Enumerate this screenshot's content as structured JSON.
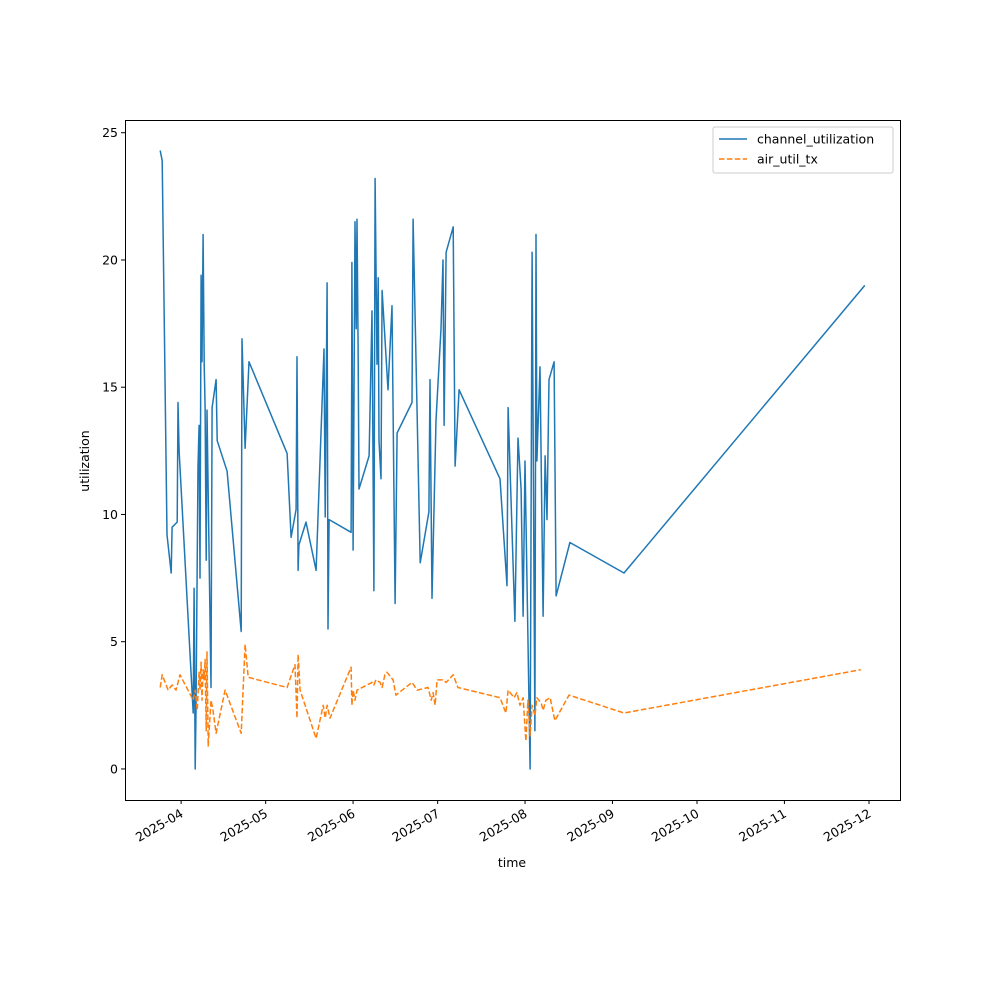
{
  "chart_data": {
    "type": "line",
    "title": "",
    "xlabel": "time",
    "ylabel": "utilization",
    "x_unit": "days since 2025-04-01",
    "xlim": [
      -19.9,
      255
    ],
    "ylim": [
      -1.22,
      25.5
    ],
    "grid": false,
    "legend_position": "top-right",
    "x_ticks": [
      {
        "label": "2025-04",
        "day": 0
      },
      {
        "label": "2025-05",
        "day": 30
      },
      {
        "label": "2025-06",
        "day": 61
      },
      {
        "label": "2025-07",
        "day": 91
      },
      {
        "label": "2025-08",
        "day": 122
      },
      {
        "label": "2025-09",
        "day": 153
      },
      {
        "label": "2025-10",
        "day": 183
      },
      {
        "label": "2025-11",
        "day": 214
      },
      {
        "label": "2025-12",
        "day": 244
      }
    ],
    "y_ticks": [
      0,
      5,
      10,
      15,
      20,
      25
    ],
    "series": [
      {
        "name": "channel_utilization",
        "color": "#1f77b4",
        "style": "solid",
        "points": [
          [
            -7.4,
            24.3
          ],
          [
            -6.7,
            23.9
          ],
          [
            -5.0,
            9.2
          ],
          [
            -3.5,
            7.7
          ],
          [
            -3.2,
            9.5
          ],
          [
            -1.4,
            9.7
          ],
          [
            -1.1,
            14.4
          ],
          [
            -0.7,
            12.5
          ],
          [
            4.3,
            2.2
          ],
          [
            4.6,
            7.1
          ],
          [
            5.0,
            0
          ],
          [
            5.3,
            2.3
          ],
          [
            6.0,
            11.9
          ],
          [
            6.4,
            13.5
          ],
          [
            6.7,
            7.5
          ],
          [
            7.1,
            19.4
          ],
          [
            7.4,
            16.0
          ],
          [
            7.8,
            21.0
          ],
          [
            8.2,
            15.9
          ],
          [
            8.5,
            14.2
          ],
          [
            8.9,
            8.2
          ],
          [
            9.2,
            14.1
          ],
          [
            10.6,
            3.2
          ],
          [
            11.0,
            14.2
          ],
          [
            12.4,
            15.3
          ],
          [
            12.8,
            12.9
          ],
          [
            16.3,
            11.7
          ],
          [
            21.3,
            5.4
          ],
          [
            21.6,
            16.9
          ],
          [
            22.7,
            12.6
          ],
          [
            24.1,
            16.0
          ],
          [
            37.6,
            12.4
          ],
          [
            39.0,
            9.1
          ],
          [
            40.8,
            10.2
          ],
          [
            41.1,
            16.2
          ],
          [
            41.5,
            7.8
          ],
          [
            41.8,
            8.8
          ],
          [
            44.3,
            9.7
          ],
          [
            47.9,
            7.8
          ],
          [
            50.7,
            16.5
          ],
          [
            51.1,
            9.9
          ],
          [
            51.8,
            19.1
          ],
          [
            52.1,
            5.5
          ],
          [
            52.5,
            9.8
          ],
          [
            60.3,
            9.3
          ],
          [
            60.5,
            15.3
          ],
          [
            60.6,
            19.9
          ],
          [
            61.0,
            8.6
          ],
          [
            61.7,
            21.5
          ],
          [
            62.1,
            17.3
          ],
          [
            62.4,
            21.6
          ],
          [
            62.8,
            16.6
          ],
          [
            63.1,
            11.0
          ],
          [
            66.7,
            12.3
          ],
          [
            67.7,
            18.0
          ],
          [
            68.4,
            7.0
          ],
          [
            68.8,
            23.2
          ],
          [
            69.5,
            15.9
          ],
          [
            69.9,
            19.3
          ],
          [
            70.2,
            12.9
          ],
          [
            70.9,
            11.4
          ],
          [
            71.3,
            18.8
          ],
          [
            73.4,
            14.9
          ],
          [
            74.8,
            18.2
          ],
          [
            75.9,
            6.5
          ],
          [
            76.6,
            13.2
          ],
          [
            81.9,
            14.4
          ],
          [
            82.3,
            21.6
          ],
          [
            84.8,
            8.1
          ],
          [
            87.9,
            10.1
          ],
          [
            88.3,
            15.3
          ],
          [
            89.0,
            6.7
          ],
          [
            90.4,
            13.7
          ],
          [
            92.2,
            17.3
          ],
          [
            92.9,
            20.0
          ],
          [
            93.3,
            13.5
          ],
          [
            94.0,
            20.3
          ],
          [
            96.5,
            21.3
          ],
          [
            97.2,
            11.9
          ],
          [
            98.6,
            14.9
          ],
          [
            113.1,
            11.4
          ],
          [
            115.6,
            7.2
          ],
          [
            116.0,
            14.2
          ],
          [
            118.4,
            5.8
          ],
          [
            119.5,
            13.0
          ],
          [
            120.6,
            11.0
          ],
          [
            121.3,
            6.0
          ],
          [
            122.0,
            12.1
          ],
          [
            123.8,
            0
          ],
          [
            124.5,
            20.3
          ],
          [
            125.5,
            1.5
          ],
          [
            125.9,
            21.0
          ],
          [
            126.2,
            12.1
          ],
          [
            127.3,
            15.8
          ],
          [
            128.4,
            6.0
          ],
          [
            129.1,
            12.3
          ],
          [
            129.8,
            9.8
          ],
          [
            130.5,
            15.3
          ],
          [
            132.3,
            16.0
          ],
          [
            133.0,
            6.8
          ],
          [
            137.9,
            8.9
          ],
          [
            157.1,
            7.7
          ],
          [
            242.5,
            19.0
          ]
        ]
      },
      {
        "name": "air_util_tx",
        "color": "#ff7f0e",
        "style": "dashed",
        "points": [
          [
            -7.4,
            3.2
          ],
          [
            -6.7,
            3.7
          ],
          [
            -4.6,
            3.1
          ],
          [
            -3.2,
            3.3
          ],
          [
            -1.8,
            3.1
          ],
          [
            -0.4,
            3.7
          ],
          [
            4.3,
            2.7
          ],
          [
            5.0,
            3.1
          ],
          [
            5.7,
            2.3
          ],
          [
            6.4,
            3.8
          ],
          [
            6.7,
            3.1
          ],
          [
            7.1,
            4.2
          ],
          [
            7.4,
            2.7
          ],
          [
            7.8,
            3.9
          ],
          [
            8.2,
            3.5
          ],
          [
            8.5,
            4.3
          ],
          [
            8.9,
            1.5
          ],
          [
            9.2,
            4.6
          ],
          [
            9.6,
            0.9
          ],
          [
            10.6,
            2.7
          ],
          [
            11.3,
            2.3
          ],
          [
            12.4,
            1.4
          ],
          [
            15.6,
            3.1
          ],
          [
            21.3,
            1.4
          ],
          [
            22.7,
            4.9
          ],
          [
            23.8,
            3.6
          ],
          [
            37.6,
            3.2
          ],
          [
            40.4,
            4.1
          ],
          [
            41.1,
            2.0
          ],
          [
            41.5,
            4.5
          ],
          [
            42.2,
            3.1
          ],
          [
            47.9,
            1.2
          ],
          [
            50.4,
            2.5
          ],
          [
            51.1,
            2.0
          ],
          [
            51.8,
            2.5
          ],
          [
            52.8,
            2.0
          ],
          [
            60.3,
            4.0
          ],
          [
            60.6,
            2.5
          ],
          [
            61.0,
            3.1
          ],
          [
            61.7,
            2.7
          ],
          [
            62.4,
            3.1
          ],
          [
            67.7,
            3.4
          ],
          [
            68.4,
            3.3
          ],
          [
            69.1,
            3.5
          ],
          [
            70.6,
            3.4
          ],
          [
            71.3,
            3.2
          ],
          [
            72.3,
            3.7
          ],
          [
            73.0,
            3.8
          ],
          [
            75.2,
            3.5
          ],
          [
            76.2,
            2.9
          ],
          [
            81.9,
            3.4
          ],
          [
            83.7,
            3.1
          ],
          [
            87.6,
            3.2
          ],
          [
            88.7,
            2.7
          ],
          [
            89.4,
            3.0
          ],
          [
            90.1,
            2.5
          ],
          [
            90.8,
            3.5
          ],
          [
            92.9,
            3.5
          ],
          [
            94.0,
            3.4
          ],
          [
            96.5,
            3.7
          ],
          [
            98.2,
            3.2
          ],
          [
            113.1,
            2.8
          ],
          [
            115.2,
            2.2
          ],
          [
            116.0,
            3.1
          ],
          [
            118.1,
            2.8
          ],
          [
            119.1,
            3.0
          ],
          [
            120.2,
            2.5
          ],
          [
            121.3,
            2.8
          ],
          [
            122.3,
            1.1
          ],
          [
            123.0,
            2.7
          ],
          [
            123.8,
            1.3
          ],
          [
            124.5,
            2.5
          ],
          [
            125.5,
            2.1
          ],
          [
            126.2,
            2.8
          ],
          [
            127.7,
            2.6
          ],
          [
            128.4,
            2.3
          ],
          [
            129.4,
            2.7
          ],
          [
            130.9,
            2.8
          ],
          [
            132.6,
            1.9
          ],
          [
            137.6,
            2.9
          ],
          [
            157.1,
            2.2
          ],
          [
            241.1,
            3.9
          ]
        ]
      }
    ]
  }
}
